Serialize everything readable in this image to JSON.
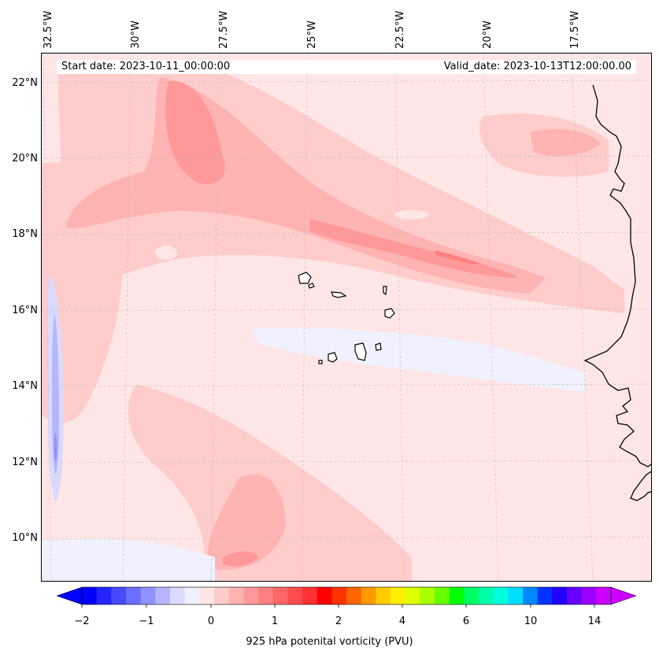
{
  "header": {
    "start_date": "Start date: 2023-10-11_00:00:00",
    "valid_date": "Valid_date: 2023-10-13T12:00:00.00"
  },
  "axes": {
    "lon_labels": [
      "32.5°W",
      "30°W",
      "27.5°W",
      "25°W",
      "22.5°W",
      "20°W",
      "17.5°W"
    ],
    "lat_labels": [
      "22°N",
      "20°N",
      "18°N",
      "16°N",
      "14°N",
      "12°N",
      "10°N"
    ]
  },
  "colorbar": {
    "title": "925 hPa potenital vorticity (PVU)",
    "ticks": [
      "−2",
      "−1",
      "0",
      "1",
      "2",
      "4",
      "6",
      "10",
      "14"
    ],
    "colors": [
      "#0000ff",
      "#2424ff",
      "#4848ff",
      "#6d6dff",
      "#9191ff",
      "#b6b6ff",
      "#dadaff",
      "#f0f0ff",
      "#ffe6e6",
      "#ffcccc",
      "#ffb3b3",
      "#ff9999",
      "#ff8080",
      "#ff6666",
      "#ff4d4d",
      "#ff3333",
      "#ff0000",
      "#ff3300",
      "#ff6600",
      "#ff9900",
      "#ffcc00",
      "#ffee00",
      "#ddff00",
      "#aaff00",
      "#66ff00",
      "#00ff00",
      "#00ff66",
      "#00ffaa",
      "#00ffdd",
      "#00ddff",
      "#0088ff",
      "#0033ff",
      "#2200ff",
      "#6600ff",
      "#9900ff",
      "#cc00ff"
    ],
    "under_color": "#0000ff",
    "over_color": "#cc00ff"
  },
  "field_colors": {
    "background": "#ffe6e6",
    "light_pink": "#ffcccc",
    "mid_pink": "#ffb3b3",
    "dark_pink": "#ff9999",
    "red_core": "#ff8080",
    "pale_blue": "#f0f0ff",
    "light_blue": "#dadaff",
    "mid_blue": "#b6b6ff",
    "deep_blue": "#9191ff",
    "coastline": "#000000"
  }
}
